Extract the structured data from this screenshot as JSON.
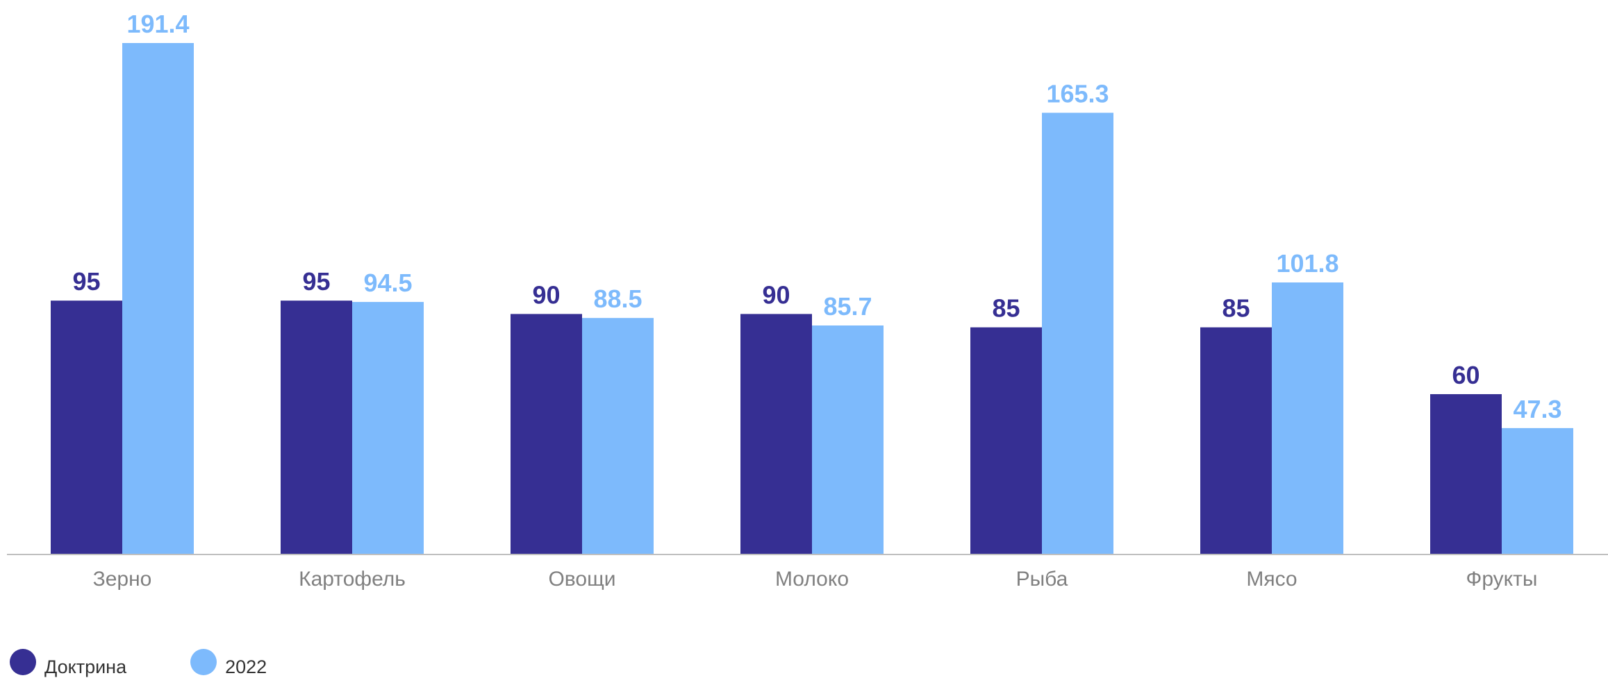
{
  "chart_data": {
    "type": "bar",
    "categories": [
      "Зерно",
      "Картофель",
      "Овощи",
      "Молоко",
      "Рыба",
      "Мясо",
      "Фрукты"
    ],
    "series": [
      {
        "name": "Доктрина",
        "values": [
          95,
          95,
          90,
          90,
          85,
          85,
          60
        ],
        "color": "#362F93",
        "labels": [
          "95",
          "95",
          "90",
          "90",
          "85",
          "85",
          "60"
        ]
      },
      {
        "name": "2022",
        "values": [
          191.4,
          94.5,
          88.5,
          85.7,
          165.3,
          101.8,
          47.3
        ],
        "color": "#7DBAFC",
        "labels": [
          "191.4",
          "94.5",
          "88.5",
          "85.7",
          "165.3",
          "101.8",
          "47.3"
        ]
      }
    ],
    "ylim": [
      0,
      191.4
    ],
    "grid": false,
    "legend_position": "bottom-left",
    "axis_color": "#BFBFBF",
    "category_label_color": "#808080"
  }
}
